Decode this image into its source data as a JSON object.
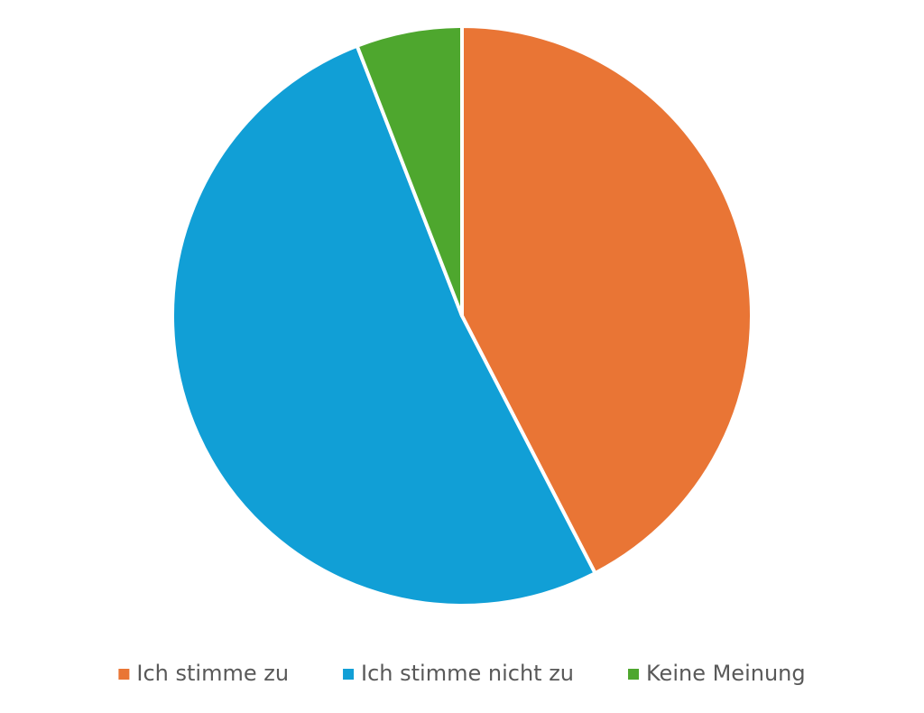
{
  "chart_data": {
    "type": "pie",
    "categories": [
      "Ich stimme zu",
      "Ich stimme nicht zu",
      "Keine Meinung"
    ],
    "values": [
      42.4,
      51.7,
      5.9
    ],
    "colors": [
      "#e97535",
      "#119fd6",
      "#4ea72e"
    ],
    "legend": "bottom"
  }
}
